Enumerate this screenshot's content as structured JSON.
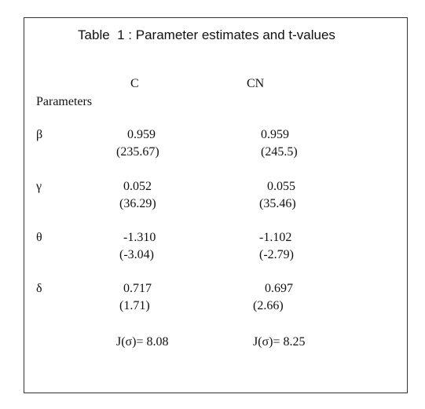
{
  "title": "Table  1 : Parameter estimates and t-values",
  "table": {
    "columns": [
      "C",
      "CN"
    ],
    "row_header": "Parameters",
    "rows": [
      {
        "parameter": "β",
        "C": [
          "0.959",
          "(235.67)"
        ],
        "CN": [
          "0.959",
          "(245.5)"
        ]
      },
      {
        "parameter": "γ",
        "C": [
          "0.052",
          "(36.29)"
        ],
        "CN": [
          "0.055",
          "(35.46)"
        ]
      },
      {
        "parameter": "θ",
        "C": [
          "-1.310",
          "(-3.04)"
        ],
        "CN": [
          "-1.102",
          "(-2.79)"
        ]
      },
      {
        "parameter": "δ",
        "C": [
          "0.717",
          "(1.71)"
        ],
        "CN": [
          "0.697",
          "(2.66)"
        ]
      }
    ],
    "footer": [
      "J(σ)= 8.08",
      "J(σ)= 8.25"
    ]
  }
}
